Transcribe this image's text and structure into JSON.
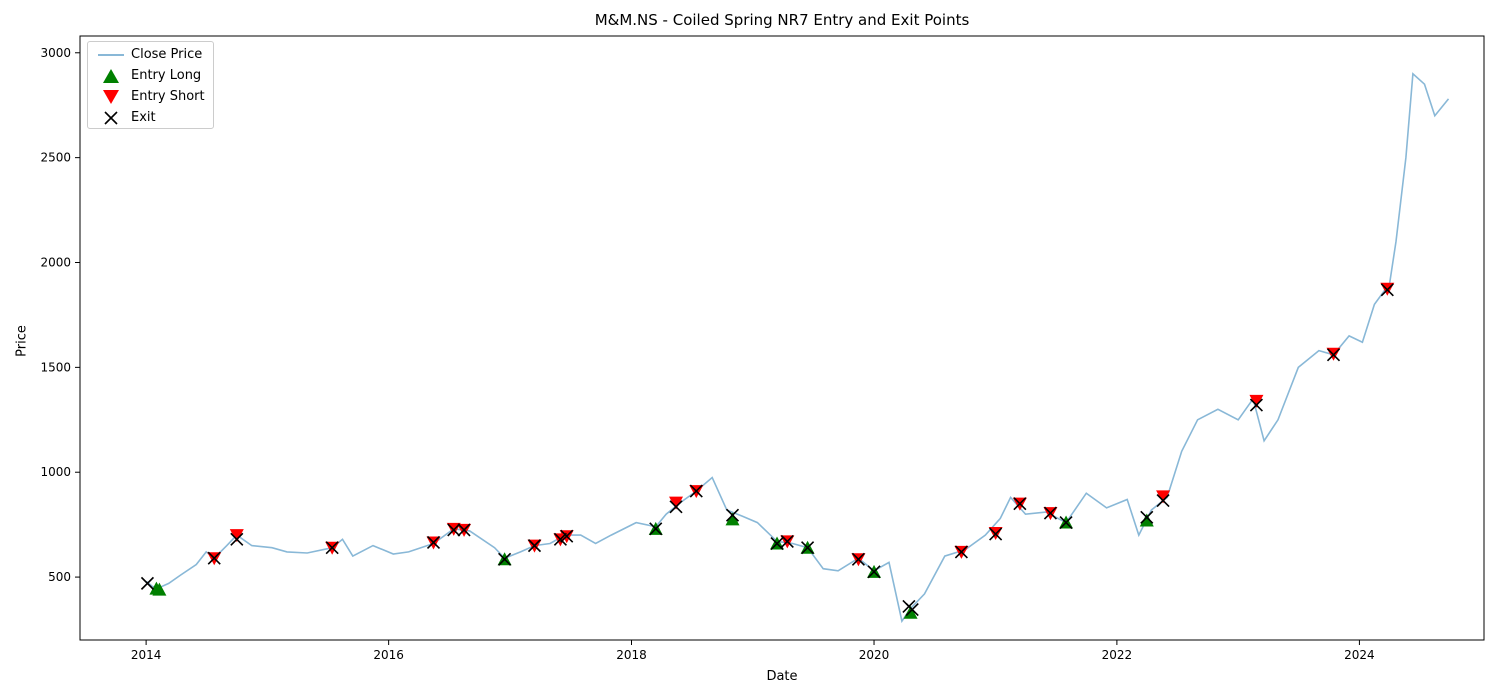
{
  "chart_data": {
    "type": "line",
    "title": "M&M.NS - Coiled Spring NR7 Entry and Exit Points",
    "xlabel": "Date",
    "ylabel": "Price",
    "x_range": [
      "2013-06-16",
      "2025-01-10"
    ],
    "ylim": [
      200,
      3080
    ],
    "x_ticks": [
      "2014",
      "2016",
      "2018",
      "2020",
      "2022",
      "2024"
    ],
    "y_ticks": [
      500,
      1000,
      1500,
      2000,
      2500,
      3000
    ],
    "grid": false,
    "legend_position": "upper left",
    "legend": [
      "Close Price",
      "Entry Long",
      "Entry Short",
      "Exit"
    ],
    "colors": {
      "close": "#89b8d7",
      "entry_long": "#008000",
      "entry_short": "#ff0000",
      "exit": "#000000"
    },
    "series": [
      {
        "name": "Close Price",
        "points": [
          [
            "2014-01-02",
            480
          ],
          [
            "2014-01-20",
            455
          ],
          [
            "2014-02-10",
            450
          ],
          [
            "2014-03-10",
            470
          ],
          [
            "2014-04-15",
            510
          ],
          [
            "2014-06-01",
            560
          ],
          [
            "2014-07-01",
            620
          ],
          [
            "2014-07-25",
            590
          ],
          [
            "2014-09-01",
            650
          ],
          [
            "2014-10-01",
            700
          ],
          [
            "2014-11-15",
            650
          ],
          [
            "2015-01-15",
            640
          ],
          [
            "2015-03-01",
            620
          ],
          [
            "2015-05-01",
            615
          ],
          [
            "2015-07-15",
            640
          ],
          [
            "2015-08-15",
            680
          ],
          [
            "2015-09-15",
            600
          ],
          [
            "2015-11-15",
            650
          ],
          [
            "2016-01-15",
            610
          ],
          [
            "2016-03-01",
            620
          ],
          [
            "2016-05-15",
            660
          ],
          [
            "2016-07-15",
            730
          ],
          [
            "2016-09-01",
            720
          ],
          [
            "2016-11-15",
            640
          ],
          [
            "2016-12-15",
            590
          ],
          [
            "2017-02-01",
            620
          ],
          [
            "2017-03-15",
            650
          ],
          [
            "2017-05-01",
            660
          ],
          [
            "2017-06-15",
            700
          ],
          [
            "2017-08-01",
            700
          ],
          [
            "2017-09-15",
            660
          ],
          [
            "2017-11-01",
            700
          ],
          [
            "2018-01-15",
            760
          ],
          [
            "2018-03-15",
            740
          ],
          [
            "2018-04-15",
            800
          ],
          [
            "2018-06-01",
            860
          ],
          [
            "2018-07-15",
            910
          ],
          [
            "2018-09-01",
            975
          ],
          [
            "2018-10-15",
            820
          ],
          [
            "2018-12-01",
            790
          ],
          [
            "2019-01-15",
            760
          ],
          [
            "2019-03-15",
            670
          ],
          [
            "2019-05-01",
            660
          ],
          [
            "2019-06-15",
            640
          ],
          [
            "2019-08-01",
            540
          ],
          [
            "2019-09-15",
            530
          ],
          [
            "2019-11-15",
            590
          ],
          [
            "2020-01-01",
            530
          ],
          [
            "2020-02-15",
            570
          ],
          [
            "2020-03-25",
            290
          ],
          [
            "2020-04-20",
            350
          ],
          [
            "2020-06-01",
            420
          ],
          [
            "2020-08-01",
            600
          ],
          [
            "2020-10-01",
            630
          ],
          [
            "2020-12-01",
            700
          ],
          [
            "2021-01-15",
            780
          ],
          [
            "2021-02-15",
            880
          ],
          [
            "2021-04-01",
            800
          ],
          [
            "2021-06-01",
            810
          ],
          [
            "2021-08-01",
            760
          ],
          [
            "2021-10-01",
            900
          ],
          [
            "2021-12-01",
            830
          ],
          [
            "2022-02-01",
            870
          ],
          [
            "2022-03-08",
            700
          ],
          [
            "2022-04-15",
            820
          ],
          [
            "2022-06-01",
            880
          ],
          [
            "2022-07-15",
            1100
          ],
          [
            "2022-09-01",
            1250
          ],
          [
            "2022-11-01",
            1300
          ],
          [
            "2023-01-01",
            1250
          ],
          [
            "2023-02-15",
            1350
          ],
          [
            "2023-03-20",
            1150
          ],
          [
            "2023-05-01",
            1250
          ],
          [
            "2023-07-01",
            1500
          ],
          [
            "2023-09-01",
            1580
          ],
          [
            "2023-10-15",
            1560
          ],
          [
            "2023-12-01",
            1650
          ],
          [
            "2024-01-10",
            1620
          ],
          [
            "2024-02-15",
            1800
          ],
          [
            "2024-04-01",
            1900
          ],
          [
            "2024-04-20",
            2100
          ],
          [
            "2024-05-20",
            2500
          ],
          [
            "2024-06-10",
            2900
          ],
          [
            "2024-07-15",
            2850
          ],
          [
            "2024-08-15",
            2700
          ],
          [
            "2024-09-25",
            2780
          ]
        ]
      }
    ],
    "entry_long": [
      [
        "2014-02-01",
        445
      ],
      [
        "2014-02-10",
        440
      ],
      [
        "2016-12-15",
        585
      ],
      [
        "2018-03-15",
        730
      ],
      [
        "2018-11-01",
        775
      ],
      [
        "2019-03-15",
        660
      ],
      [
        "2019-06-15",
        640
      ],
      [
        "2020-01-01",
        525
      ],
      [
        "2020-04-20",
        330
      ],
      [
        "2021-08-01",
        760
      ],
      [
        "2022-04-01",
        770
      ]
    ],
    "entry_short": [
      [
        "2014-07-25",
        590
      ],
      [
        "2014-10-01",
        700
      ],
      [
        "2015-07-15",
        640
      ],
      [
        "2016-05-15",
        665
      ],
      [
        "2016-07-15",
        730
      ],
      [
        "2016-08-15",
        725
      ],
      [
        "2017-03-15",
        650
      ],
      [
        "2017-06-01",
        680
      ],
      [
        "2017-06-20",
        695
      ],
      [
        "2018-05-15",
        855
      ],
      [
        "2018-07-15",
        910
      ],
      [
        "2019-04-15",
        670
      ],
      [
        "2019-11-15",
        585
      ],
      [
        "2020-09-20",
        620
      ],
      [
        "2021-01-01",
        710
      ],
      [
        "2021-03-15",
        850
      ],
      [
        "2021-06-15",
        805
      ],
      [
        "2022-05-20",
        885
      ],
      [
        "2023-02-25",
        1340
      ],
      [
        "2023-10-15",
        1565
      ],
      [
        "2024-03-25",
        1875
      ]
    ],
    "exit": [
      [
        "2014-01-05",
        470
      ],
      [
        "2014-07-25",
        590
      ],
      [
        "2014-10-01",
        680
      ],
      [
        "2015-07-15",
        640
      ],
      [
        "2016-05-15",
        665
      ],
      [
        "2016-07-15",
        725
      ],
      [
        "2016-08-15",
        725
      ],
      [
        "2016-12-15",
        585
      ],
      [
        "2017-03-15",
        650
      ],
      [
        "2017-06-01",
        680
      ],
      [
        "2017-06-20",
        695
      ],
      [
        "2018-03-15",
        730
      ],
      [
        "2018-05-15",
        835
      ],
      [
        "2018-07-15",
        910
      ],
      [
        "2018-11-01",
        795
      ],
      [
        "2019-03-15",
        660
      ],
      [
        "2019-04-15",
        670
      ],
      [
        "2019-06-15",
        640
      ],
      [
        "2019-11-15",
        585
      ],
      [
        "2020-01-01",
        525
      ],
      [
        "2020-04-15",
        360
      ],
      [
        "2020-04-25",
        345
      ],
      [
        "2020-09-20",
        620
      ],
      [
        "2021-01-01",
        705
      ],
      [
        "2021-03-15",
        850
      ],
      [
        "2021-06-15",
        805
      ],
      [
        "2021-08-01",
        760
      ],
      [
        "2022-04-01",
        785
      ],
      [
        "2022-05-20",
        865
      ],
      [
        "2023-02-25",
        1320
      ],
      [
        "2023-10-15",
        1560
      ],
      [
        "2024-03-25",
        1870
      ]
    ]
  }
}
